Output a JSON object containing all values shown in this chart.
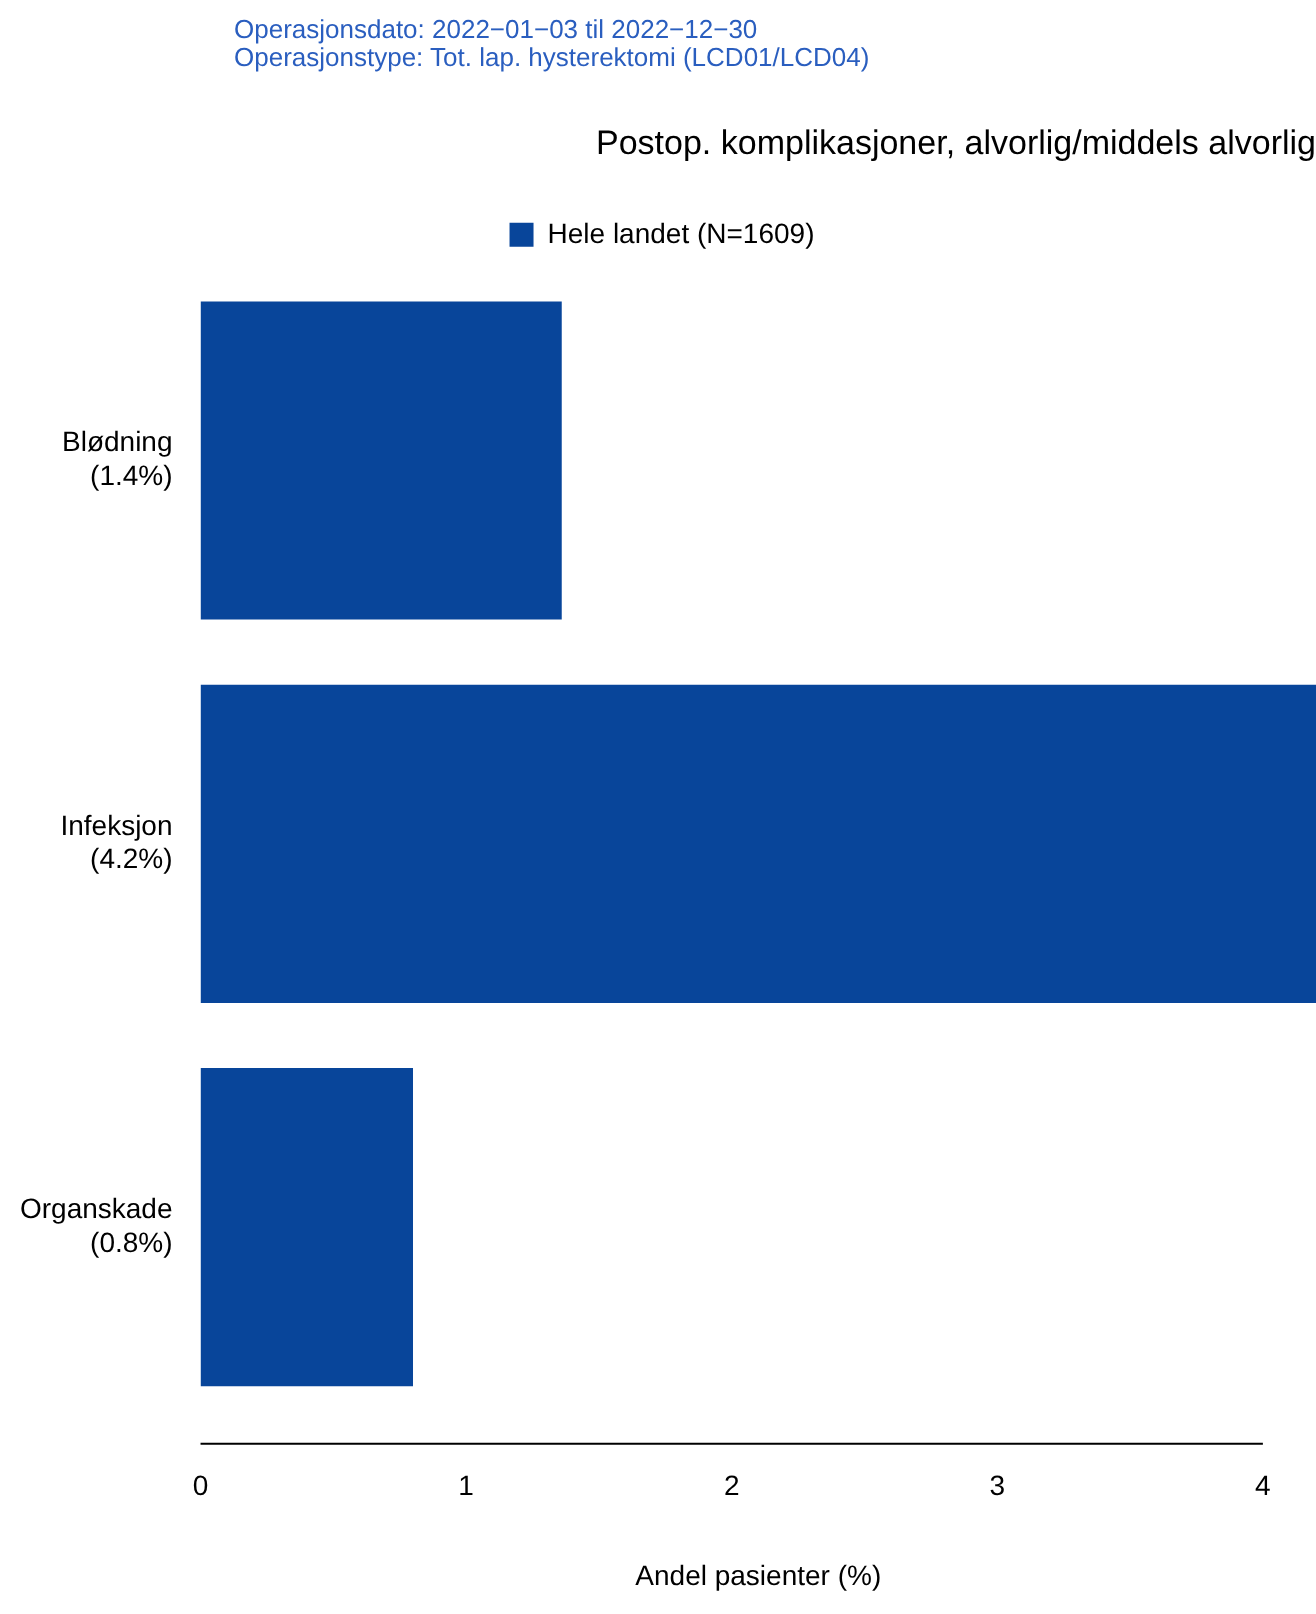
{
  "chart_data": {
    "type": "bar",
    "orientation": "horizontal",
    "title": "Postop. komplikasjoner, alvorlig/middels alvorlig",
    "annotations": [
      "Operasjonsdato: 2022−01−03 til 2022−12−30",
      "Operasjonstype: Tot. lap. hysterektomi (LCD01/LCD04)"
    ],
    "xlabel": "Andel pasienter (%)",
    "categories": [
      "Blødning\n(1.4%)",
      "Infeksjon\n(4.2%)",
      "Organskade\n(0.8%)"
    ],
    "series": [
      {
        "name": "Hele landet (N=1609)",
        "color": "#08459a",
        "values": [
          1.36,
          4.2,
          0.8
        ]
      }
    ],
    "xlim": [
      0,
      4.2
    ],
    "xticks": [
      0,
      1,
      2,
      3,
      4
    ],
    "grid": false,
    "legend": "top"
  }
}
